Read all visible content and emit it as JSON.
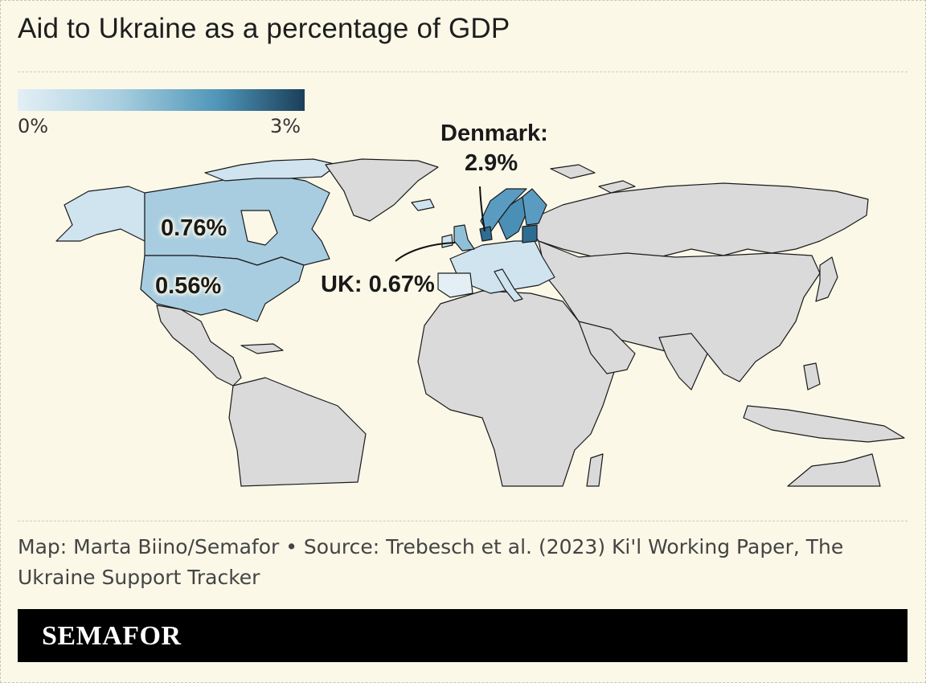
{
  "title": "Aid to Ukraine as a percentage of GDP",
  "legend": {
    "min_label": "0%",
    "max_label": "3%",
    "colors": [
      "#e3eff5",
      "#a9cfe0",
      "#4f95b8",
      "#1a3f58"
    ]
  },
  "annotations": {
    "canada": "0.76%",
    "usa": "0.56%",
    "uk": "UK: 0.67%",
    "denmark_line1": "Denmark:",
    "denmark_line2": "2.9%"
  },
  "source": "Map: Marta Biino/Semafor • Source: Trebesch et al. (2023) Ki'l Working Paper, The Ukraine Support Tracker",
  "brand": "SEMAFOR",
  "map_data": {
    "type": "choropleth",
    "unit": "percent of GDP",
    "scale": [
      0,
      3
    ],
    "highlighted": [
      {
        "country": "Canada",
        "value": 0.76
      },
      {
        "country": "United States",
        "value": 0.56
      },
      {
        "country": "United Kingdom",
        "value": 0.67
      },
      {
        "country": "Denmark",
        "value": 2.9
      }
    ],
    "colors": {
      "no_data": "#dadada",
      "border": "#1a1a1a",
      "light": "#cfe4ef",
      "mid": "#a8cde0",
      "dark": "#4a8fb5",
      "darkest": "#2e6d92"
    }
  }
}
